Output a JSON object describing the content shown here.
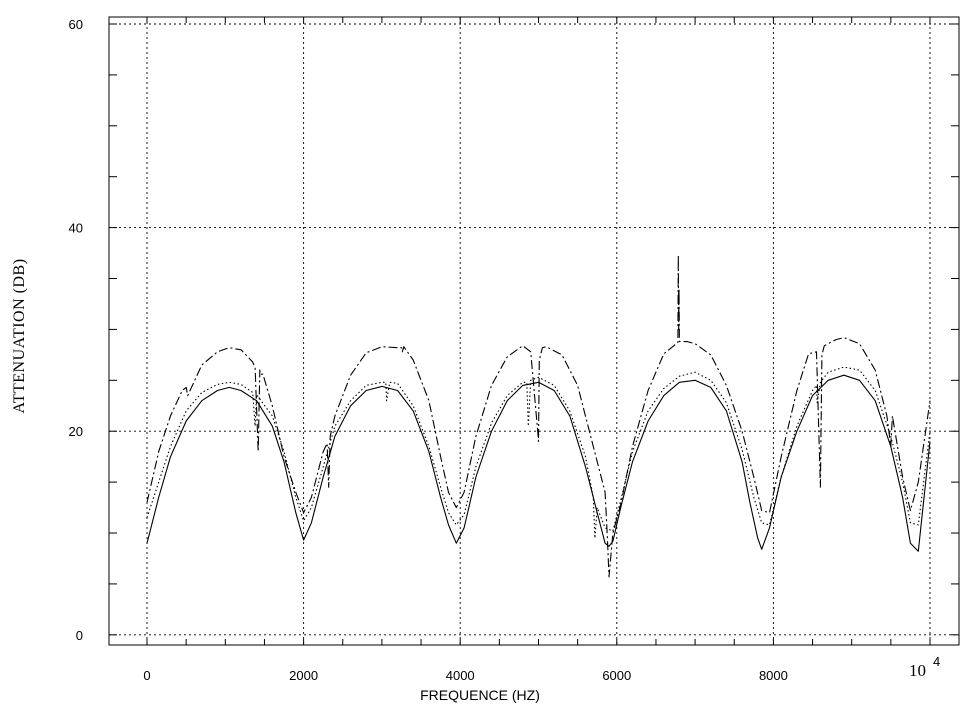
{
  "chart_data": {
    "type": "line",
    "xlabel": "FREQUENCE (HZ)",
    "ylabel": "ATTENUATION (DB)",
    "xlim": [
      -500,
      10200
    ],
    "ylim": [
      -1,
      60
    ],
    "xticks": [
      0,
      2000,
      4000,
      6000,
      8000
    ],
    "xtick_labels": [
      "0",
      "2000",
      "4000",
      "6000",
      "8000"
    ],
    "x_end_label": "10",
    "x_end_exponent": "4",
    "yticks": [
      0,
      20,
      40,
      60
    ],
    "ytick_labels": [
      "0",
      "20",
      "40",
      "60"
    ],
    "grid": true,
    "series": [
      {
        "style": "solid",
        "x": [
          0,
          150,
          300,
          500,
          700,
          900,
          1050,
          1200,
          1400,
          1600,
          1750,
          1900,
          2000,
          2100,
          2250,
          2400,
          2600,
          2800,
          3000,
          3200,
          3400,
          3600,
          3750,
          3850,
          3950,
          4050,
          4200,
          4400,
          4600,
          4800,
          5000,
          5200,
          5400,
          5600,
          5750,
          5850,
          5900,
          5950,
          6050,
          6200,
          6400,
          6600,
          6800,
          7000,
          7200,
          7400,
          7600,
          7700,
          7800,
          7850,
          7950,
          8100,
          8300,
          8500,
          8700,
          8900,
          9100,
          9300,
          9500,
          9650,
          9750,
          9850,
          10000
        ],
        "y": [
          9,
          13.5,
          17.5,
          21,
          23,
          24,
          24.3,
          24,
          23,
          20.5,
          17,
          12,
          9.3,
          11,
          15.5,
          19.5,
          22.5,
          24,
          24.4,
          24,
          22,
          18,
          13.5,
          10.8,
          9,
          10.5,
          15.5,
          20,
          23,
          24.5,
          24.8,
          24,
          21.5,
          16.5,
          12,
          9,
          8.7,
          9.2,
          12.5,
          17,
          21,
          23.5,
          24.8,
          25,
          24.3,
          22,
          17,
          13,
          9.5,
          8.4,
          10.5,
          15.5,
          20,
          23.5,
          25,
          25.5,
          25,
          23,
          18.5,
          13.5,
          9,
          8.2,
          19
        ]
      },
      {
        "style": "dotted",
        "x": [
          0,
          150,
          300,
          500,
          700,
          900,
          1050,
          1200,
          1350,
          1380,
          1400,
          1600,
          1750,
          1900,
          2000,
          2100,
          2250,
          2400,
          2600,
          2800,
          3000,
          3050,
          3060,
          3100,
          3200,
          3400,
          3600,
          3750,
          3850,
          3950,
          4050,
          4200,
          4400,
          4600,
          4800,
          4850,
          4870,
          4900,
          5000,
          5200,
          5400,
          5600,
          5700,
          5720,
          5750,
          5850,
          5950,
          6050,
          6200,
          6400,
          6600,
          6800,
          7000,
          7200,
          7400,
          7600,
          7750,
          7850,
          7950,
          8100,
          8300,
          8500,
          8550,
          8560,
          8600,
          8700,
          8900,
          9100,
          9300,
          9500,
          9650,
          9750,
          9850,
          10000
        ],
        "y": [
          11.5,
          15,
          18.5,
          22,
          23.8,
          24.6,
          24.8,
          24.6,
          23.8,
          20.5,
          23.6,
          21.5,
          18,
          13.5,
          11.2,
          12.5,
          16.5,
          20.5,
          23,
          24.5,
          24.8,
          24.8,
          23,
          24.8,
          24.7,
          22.5,
          18.5,
          14.5,
          12,
          10.8,
          11.8,
          16.5,
          20.8,
          23.5,
          24.8,
          24.8,
          20.5,
          25,
          25.3,
          24.5,
          22,
          17.5,
          13.5,
          9.5,
          12.5,
          10.5,
          10.2,
          13.2,
          18,
          22,
          24.2,
          25.4,
          25.8,
          25,
          22.8,
          18.2,
          13.5,
          11,
          10.8,
          15.5,
          20.5,
          24,
          24.5,
          22.8,
          24.8,
          25.8,
          26.3,
          26,
          24,
          19.5,
          15,
          11,
          10.8,
          20
        ]
      },
      {
        "style": "dashdot",
        "x": [
          0,
          150,
          300,
          450,
          500,
          520,
          700,
          900,
          1050,
          1200,
          1350,
          1380,
          1420,
          1440,
          1450,
          1480,
          1600,
          1750,
          1900,
          2000,
          2100,
          2250,
          2300,
          2320,
          2340,
          2400,
          2600,
          2800,
          3000,
          3200,
          3250,
          3260,
          3280,
          3400,
          3600,
          3750,
          3850,
          3950,
          4050,
          4200,
          4400,
          4600,
          4800,
          4900,
          4990,
          5000,
          5010,
          5050,
          5100,
          5300,
          5500,
          5700,
          5850,
          5880,
          5900,
          5950,
          6050,
          6200,
          6400,
          6600,
          6780,
          6785,
          6790,
          6795,
          6800,
          6900,
          7000,
          7200,
          7400,
          7600,
          7750,
          7850,
          7950,
          8100,
          8300,
          8450,
          8550,
          8580,
          8600,
          8620,
          8650,
          8800,
          8900,
          9100,
          9300,
          9450,
          9500,
          9520,
          9650,
          9750,
          9850,
          10000
        ],
        "y": [
          13,
          18,
          21.5,
          24,
          24.3,
          23.5,
          26.5,
          27.8,
          28.2,
          28,
          26.8,
          26.2,
          18,
          26,
          25.6,
          25.6,
          22.5,
          17.5,
          14,
          12,
          13.5,
          18,
          18.8,
          14.5,
          19.5,
          21.5,
          25.5,
          27.7,
          28.3,
          28.2,
          28.2,
          27.8,
          28.3,
          27,
          23,
          17.5,
          14,
          12.5,
          14,
          19.5,
          24.5,
          27.3,
          28.4,
          27.8,
          20,
          19,
          27,
          28.2,
          28.3,
          27.5,
          24.5,
          18.5,
          14,
          9.5,
          5.7,
          10,
          12.8,
          18.5,
          24,
          27.6,
          28.7,
          37.3,
          30,
          34,
          28.8,
          28.8,
          28.6,
          27.5,
          24.5,
          20,
          15.5,
          12.2,
          12,
          17.5,
          24,
          27.6,
          27.8,
          20,
          14.5,
          27.5,
          28.4,
          29,
          29.2,
          28.6,
          26,
          21.5,
          18.5,
          21.5,
          15.5,
          12.2,
          15,
          23
        ]
      }
    ]
  }
}
